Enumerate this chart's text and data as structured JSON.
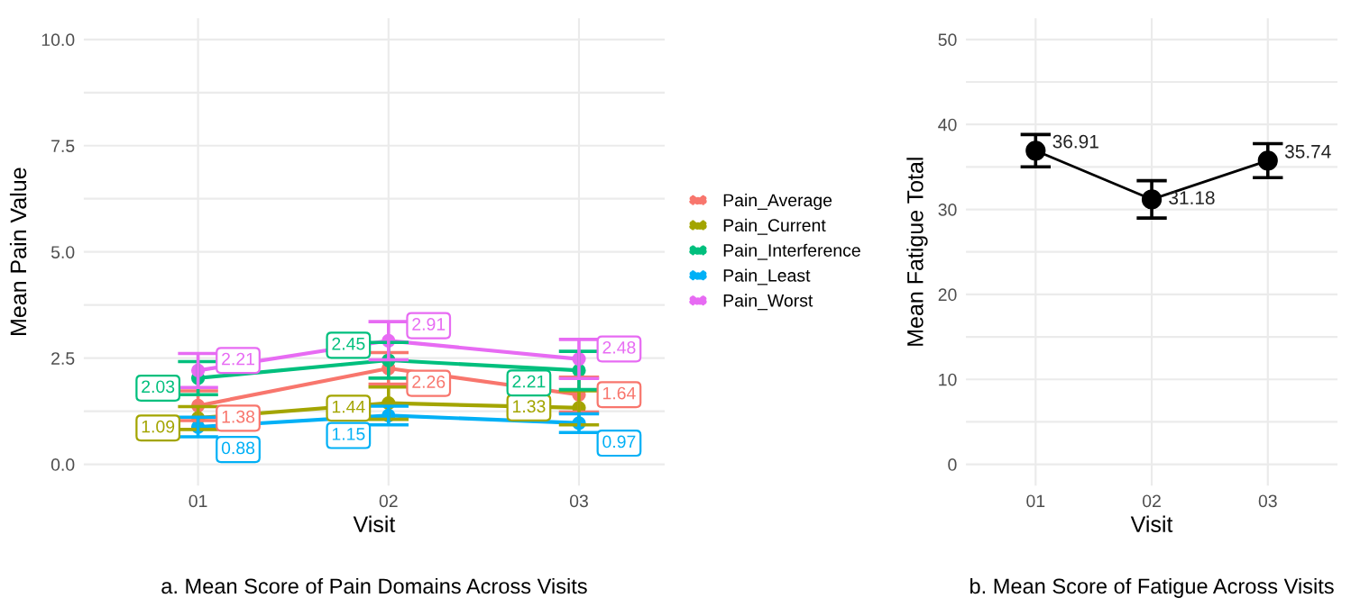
{
  "chart_data": [
    {
      "type": "line",
      "xlabel": "Visit",
      "ylabel": "Mean Pain Value",
      "categories": [
        "01",
        "02",
        "03"
      ],
      "series": [
        {
          "name": "Pain_Average",
          "color": "#f8766d",
          "values": [
            1.38,
            2.26,
            1.64
          ],
          "errors": [
            0.35,
            0.37,
            0.41
          ]
        },
        {
          "name": "Pain_Current",
          "color": "#a3a500",
          "values": [
            1.09,
            1.44,
            1.33
          ],
          "errors": [
            0.27,
            0.38,
            0.4
          ]
        },
        {
          "name": "Pain_Interference",
          "color": "#00bf7d",
          "values": [
            2.03,
            2.45,
            2.21
          ],
          "errors": [
            0.39,
            0.42,
            0.45
          ]
        },
        {
          "name": "Pain_Least",
          "color": "#00b0f6",
          "values": [
            0.88,
            1.15,
            0.97
          ],
          "errors": [
            0.23,
            0.22,
            0.22
          ]
        },
        {
          "name": "Pain_Worst",
          "color": "#e76bf3",
          "values": [
            2.21,
            2.91,
            2.48
          ],
          "errors": [
            0.4,
            0.45,
            0.46
          ]
        }
      ],
      "ylim": [
        -0.5,
        10.5
      ],
      "yticks": [
        {
          "value": 0,
          "label": "0.0"
        },
        {
          "value": 1.25,
          "label": null
        },
        {
          "value": 2.5,
          "label": "2.5"
        },
        {
          "value": 3.75,
          "label": null
        },
        {
          "value": 5,
          "label": "5.0"
        },
        {
          "value": 6.25,
          "label": null
        },
        {
          "value": 7.5,
          "label": "7.5"
        },
        {
          "value": 8.75,
          "label": null
        },
        {
          "value": 10,
          "label": "10.0"
        }
      ],
      "grid": true,
      "legend": "right",
      "marker": "circle",
      "data_labels": true,
      "annotations": [
        "a. Mean Score of Pain Domains Across Visits"
      ]
    },
    {
      "type": "line",
      "xlabel": "Visit",
      "ylabel": "Mean Fatigue Total",
      "categories": [
        "01",
        "02",
        "03"
      ],
      "series": [
        {
          "color": "#000000",
          "values": [
            36.91,
            31.18,
            35.74
          ],
          "errors": [
            1.9,
            2.2,
            2.0
          ]
        }
      ],
      "ylim": [
        -2.5,
        52.5
      ],
      "yticks": [
        0,
        {
          "value": 5,
          "label": null
        },
        10,
        {
          "value": 15,
          "label": null
        },
        20,
        {
          "value": 25,
          "label": null
        },
        30,
        {
          "value": 35,
          "label": null
        },
        40,
        {
          "value": 45,
          "label": null
        },
        50
      ],
      "grid": true,
      "marker": "circle",
      "data_labels": true,
      "annotations": [
        "b. Mean Score of Fatigue Across Visits"
      ]
    }
  ]
}
